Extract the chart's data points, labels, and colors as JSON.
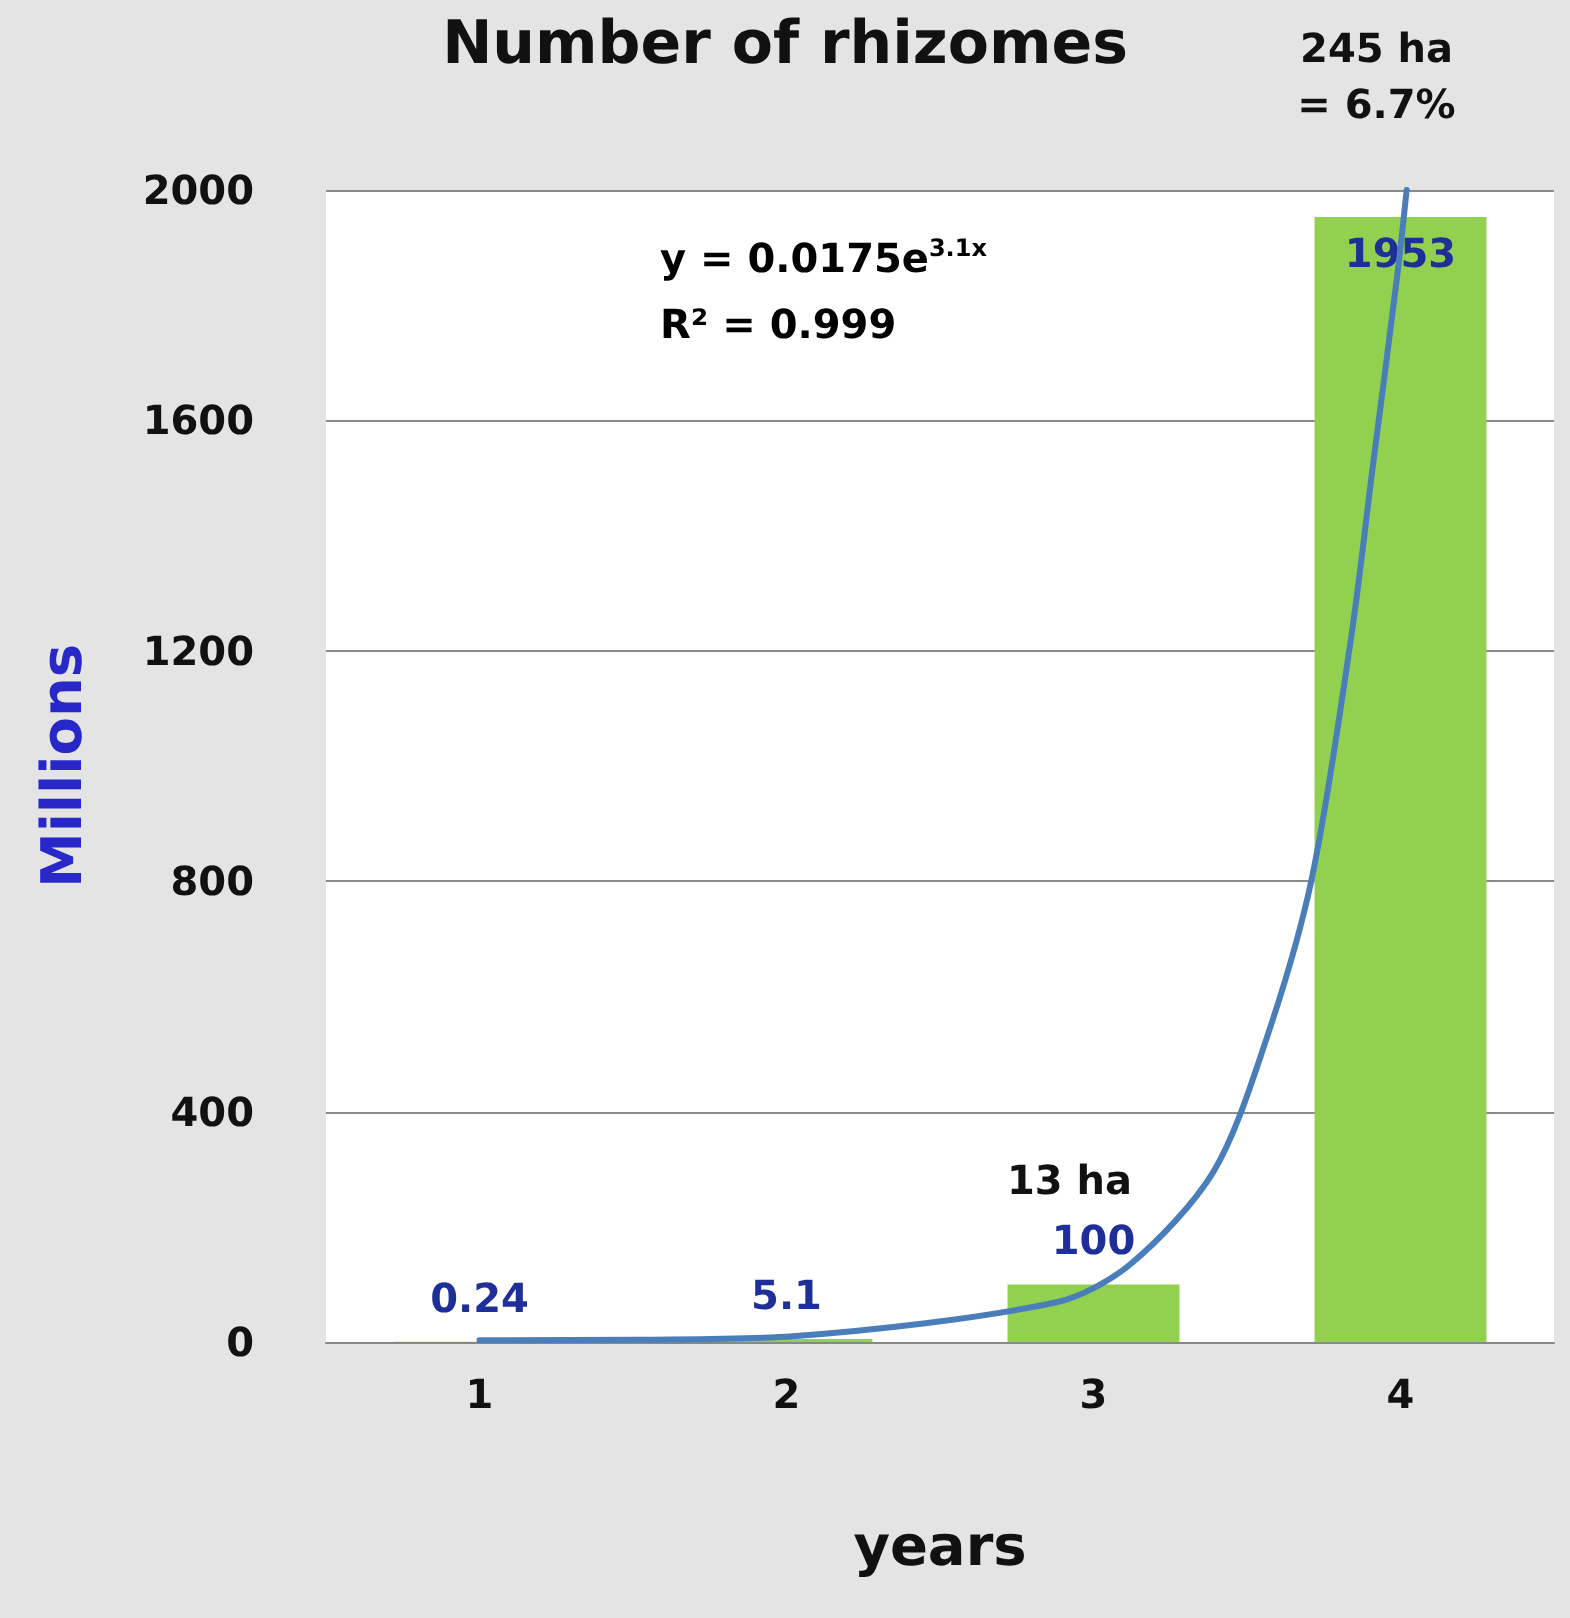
{
  "chart_data": {
    "type": "bar",
    "title": "Number of rhizomes",
    "xlabel": "years",
    "ylabel": "Millions",
    "x": [
      1,
      2,
      3,
      4
    ],
    "xlim": [
      0.5,
      4.5
    ],
    "xticks": [
      1,
      2,
      3,
      4
    ],
    "ylim": [
      0,
      2000
    ],
    "yticks": [
      0,
      400,
      800,
      1200,
      1600,
      2000
    ],
    "grid": "y",
    "series": [
      {
        "color": "#92d050",
        "values": [
          0.24,
          5.1,
          100,
          1953
        ],
        "value_labels": [
          "0.24",
          "5.1",
          "100",
          "1953"
        ]
      },
      {
        "type": "line",
        "color": "#4a7ebb",
        "marker": "none",
        "line_style": "solid",
        "x": [
          1,
          1.51,
          2.02,
          2.88,
          3.12,
          3.39,
          3.56,
          3.71,
          3.84,
          3.91,
          3.99,
          4.02
        ],
        "values": [
          3,
          4,
          10,
          69,
          135,
          295,
          521,
          802,
          1226,
          1521,
          1854,
          2000
        ]
      }
    ],
    "annotations": [
      "y = 0.0175e$^{3.1x}$",
      "R² = 0.999",
      "13 ha",
      "245 ha = 6.7%"
    ]
  }
}
